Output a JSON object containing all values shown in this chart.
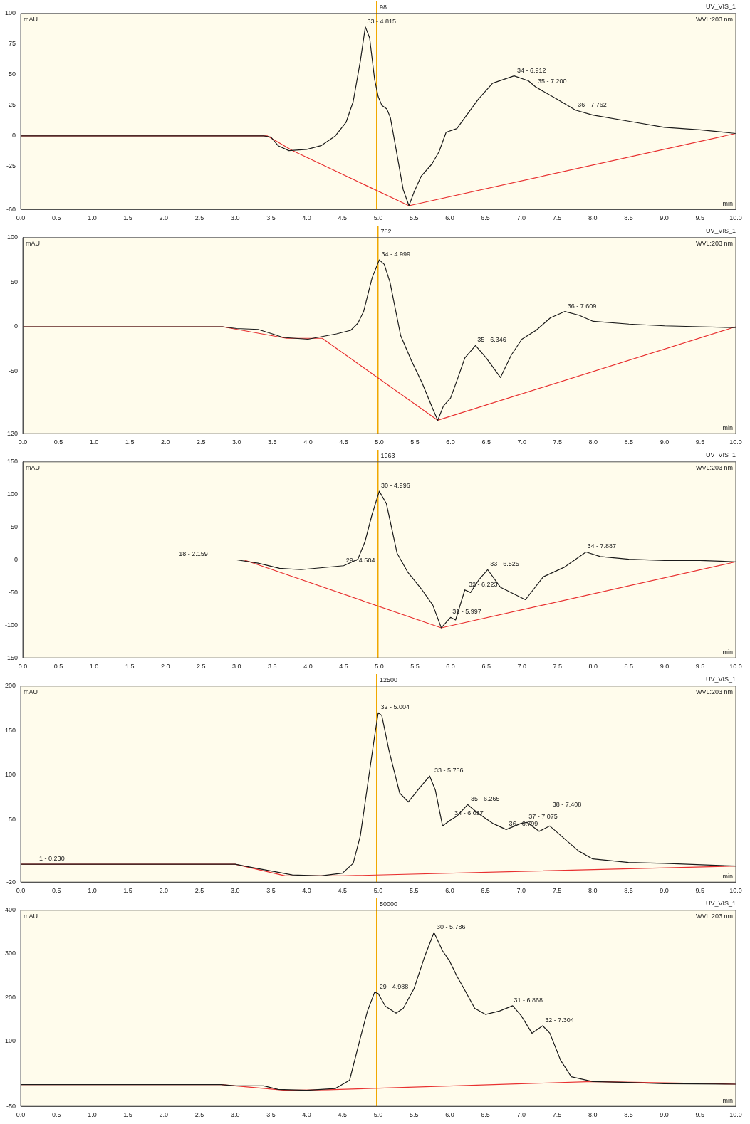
{
  "chart_data": [
    {
      "type": "line",
      "title": "UV_VIS_1",
      "subtitle": "WVL:203 nm",
      "ylabel": "mAU",
      "xlabel": "min",
      "xlim": [
        0,
        10
      ],
      "xticks": [
        {
          "value": 0,
          "label": "0.0"
        },
        {
          "value": 0.5,
          "label": "0.5"
        },
        {
          "value": 1,
          "label": "1.0"
        },
        {
          "value": 1.5,
          "label": "1.5"
        },
        {
          "value": 2,
          "label": "2.0"
        },
        {
          "value": 2.5,
          "label": "2.5"
        },
        {
          "value": 3,
          "label": "3.0"
        },
        {
          "value": 3.5,
          "label": "3.5"
        },
        {
          "value": 4,
          "label": "4.0"
        },
        {
          "value": 4.5,
          "label": "4.5"
        },
        {
          "value": 5,
          "label": "5.0"
        },
        {
          "value": 5.5,
          "label": "5.5"
        },
        {
          "value": 6,
          "label": "6.0"
        },
        {
          "value": 6.5,
          "label": "6.5"
        },
        {
          "value": 7,
          "label": "7.0"
        },
        {
          "value": 7.5,
          "label": "7.5"
        },
        {
          "value": 8,
          "label": "8.0"
        },
        {
          "value": 8.5,
          "label": "8.5"
        },
        {
          "value": 9,
          "label": "9.0"
        },
        {
          "value": 9.5,
          "label": "9.5"
        },
        {
          "value": 10,
          "label": "10.0"
        }
      ],
      "ylim": [
        -60,
        100
      ],
      "yticks": [
        -60,
        -25,
        0,
        25,
        50,
        75,
        100
      ],
      "series": [
        {
          "color": "#1a1a1a",
          "x": [
            0,
            3.4,
            3.5,
            3.6,
            3.75,
            4.0,
            4.2,
            4.4,
            4.55,
            4.65,
            4.75,
            4.82,
            4.88,
            4.95,
            5.0,
            5.05,
            5.12,
            5.17,
            5.25,
            5.35,
            5.43,
            5.5,
            5.6,
            5.75,
            5.85,
            5.95,
            6.1,
            6.25,
            6.4,
            6.6,
            6.9,
            7.1,
            7.2,
            7.5,
            7.76,
            8.0,
            8.5,
            9.0,
            9.5,
            10.0
          ],
          "values": [
            0,
            0,
            -1,
            -8,
            -12,
            -11,
            -8,
            0,
            11,
            28,
            61,
            89,
            80,
            46,
            32,
            25,
            22,
            15,
            -11,
            -44,
            -57,
            -46,
            -33,
            -23,
            -13,
            3,
            6,
            18,
            30,
            43,
            49,
            45,
            40,
            30,
            21,
            17,
            12,
            7,
            5,
            2
          ]
        },
        {
          "color": "#e83030",
          "x": [
            0,
            3.45,
            3.8,
            5.43,
            10
          ],
          "values": [
            0,
            0,
            -12,
            -57,
            2
          ]
        }
      ],
      "ref_lines": [
        {
          "axis": "x",
          "value": 4.98,
          "color": "#f0a800"
        }
      ],
      "annotations": [
        "98",
        {
          "text": "33 - 4.815",
          "x": 4.815,
          "y": 89
        },
        {
          "text": "34 - 6.912",
          "x": 6.912,
          "y": 49
        },
        {
          "text": "35 - 7.200",
          "x": 7.2,
          "y": 40
        },
        {
          "text": "36 - 7.762",
          "x": 7.762,
          "y": 21
        }
      ]
    },
    {
      "type": "line",
      "title": "UV_VIS_1",
      "subtitle": "WVL:203 nm",
      "ylabel": "mAU",
      "xlabel": "min",
      "xlim": [
        0,
        10
      ],
      "xticks": [
        {
          "value": 0,
          "label": "0.0"
        },
        {
          "value": 0.5,
          "label": "0.5"
        },
        {
          "value": 1,
          "label": "1.0"
        },
        {
          "value": 1.5,
          "label": "1.5"
        },
        {
          "value": 2,
          "label": "2.0"
        },
        {
          "value": 2.5,
          "label": "2.5"
        },
        {
          "value": 3,
          "label": "3.0"
        },
        {
          "value": 3.5,
          "label": "3.5"
        },
        {
          "value": 4,
          "label": "4.0"
        },
        {
          "value": 4.5,
          "label": "4.5"
        },
        {
          "value": 5,
          "label": "5.0"
        },
        {
          "value": 5.5,
          "label": "5.5"
        },
        {
          "value": 6,
          "label": "6.0"
        },
        {
          "value": 6.5,
          "label": "6.5"
        },
        {
          "value": 7,
          "label": "7.0"
        },
        {
          "value": 7.5,
          "label": "7.5"
        },
        {
          "value": 8,
          "label": "8.0"
        },
        {
          "value": 8.5,
          "label": "8.5"
        },
        {
          "value": 9,
          "label": "9.0"
        },
        {
          "value": 9.5,
          "label": "9.5"
        },
        {
          "value": 10,
          "label": "10.0"
        }
      ],
      "ylim": [
        -120,
        100
      ],
      "yticks": [
        -120,
        -50,
        0,
        50,
        100
      ],
      "series": [
        {
          "color": "#1a1a1a",
          "x": [
            0,
            2.8,
            3.0,
            3.3,
            3.5,
            3.65,
            4.0,
            4.2,
            4.4,
            4.6,
            4.7,
            4.78,
            4.9,
            5.0,
            5.07,
            5.15,
            5.3,
            5.45,
            5.6,
            5.75,
            5.82,
            5.9,
            6.0,
            6.1,
            6.2,
            6.35,
            6.5,
            6.7,
            6.85,
            7.0,
            7.2,
            7.4,
            7.6,
            7.8,
            8.0,
            8.5,
            9.0,
            9.5,
            10.0
          ],
          "values": [
            0,
            0,
            -2,
            -3,
            -8,
            -12,
            -14,
            -11,
            -8,
            -4,
            4,
            17,
            55,
            75,
            70,
            50,
            -10,
            -38,
            -63,
            -92,
            -105,
            -89,
            -80,
            -58,
            -35,
            -21,
            -35,
            -57,
            -32,
            -14,
            -4,
            10,
            17,
            13,
            6,
            3,
            1,
            0,
            -1
          ]
        },
        {
          "color": "#e83030",
          "x": [
            0,
            2.8,
            3.7,
            4.2,
            5.82,
            10
          ],
          "values": [
            0,
            0,
            -13,
            -13,
            -105,
            0
          ]
        }
      ],
      "ref_lines": [
        {
          "axis": "x",
          "value": 4.98,
          "color": "#f0a800"
        }
      ],
      "annotations": [
        "782",
        {
          "text": "34 - 4.999",
          "x": 4.999,
          "y": 75
        },
        {
          "text": "35 - 6.346",
          "x": 6.346,
          "y": -21
        },
        {
          "text": "36 - 7.609",
          "x": 7.609,
          "y": 17
        }
      ]
    },
    {
      "type": "line",
      "title": "UV_VIS_1",
      "subtitle": "WVL:203 nm",
      "ylabel": "mAU",
      "xlabel": "min",
      "xlim": [
        0,
        10
      ],
      "xticks": [
        {
          "value": 0,
          "label": "0.0"
        },
        {
          "value": 0.5,
          "label": "0.5"
        },
        {
          "value": 1,
          "label": "1.0"
        },
        {
          "value": 1.5,
          "label": "1.5"
        },
        {
          "value": 2,
          "label": "2.0"
        },
        {
          "value": 2.5,
          "label": "2.5"
        },
        {
          "value": 3,
          "label": "3.0"
        },
        {
          "value": 3.5,
          "label": "3.5"
        },
        {
          "value": 4,
          "label": "4.0"
        },
        {
          "value": 4.5,
          "label": "4.5"
        },
        {
          "value": 5,
          "label": "5.0"
        },
        {
          "value": 5.5,
          "label": "5.5"
        },
        {
          "value": 6,
          "label": "6.0"
        },
        {
          "value": 6.5,
          "label": "6.5"
        },
        {
          "value": 7,
          "label": "7.0"
        },
        {
          "value": 7.5,
          "label": "7.5"
        },
        {
          "value": 8,
          "label": "8.0"
        },
        {
          "value": 8.5,
          "label": "8.5"
        },
        {
          "value": 9,
          "label": "9.0"
        },
        {
          "value": 9.5,
          "label": "9.5"
        },
        {
          "value": 10,
          "label": "10.0"
        }
      ],
      "ylim": [
        -150,
        150
      ],
      "yticks": [
        -150,
        -100,
        -50,
        0,
        50,
        100,
        150
      ],
      "series": [
        {
          "color": "#1a1a1a",
          "x": [
            0,
            3.0,
            3.3,
            3.6,
            3.9,
            4.2,
            4.5,
            4.7,
            4.8,
            4.9,
            5.0,
            5.1,
            5.25,
            5.4,
            5.6,
            5.75,
            5.87,
            6.0,
            6.07,
            6.2,
            6.28,
            6.4,
            6.52,
            6.7,
            7.05,
            7.3,
            7.6,
            7.9,
            8.1,
            8.5,
            9.0,
            9.5,
            10.0
          ],
          "values": [
            0,
            0,
            -5,
            -13,
            -15,
            -12,
            -9,
            1,
            28,
            70,
            105,
            86,
            10,
            -19,
            -46,
            -69,
            -104,
            -88,
            -92,
            -46,
            -50,
            -30,
            -15,
            -42,
            -61,
            -26,
            -11,
            12,
            5,
            1,
            -1,
            -1,
            -3
          ]
        },
        {
          "color": "#e83030",
          "x": [
            0,
            3.1,
            5.87,
            10
          ],
          "values": [
            0,
            0,
            -104,
            -3
          ]
        }
      ],
      "ref_lines": [
        {
          "axis": "x",
          "value": 4.98,
          "color": "#f0a800"
        }
      ],
      "annotations": [
        "1963",
        {
          "text": "18 - 2.159",
          "x": 2.159,
          "y": 0
        },
        {
          "text": "29 - 4.504",
          "x": 4.504,
          "y": -9
        },
        {
          "text": "30 - 4.996",
          "x": 4.996,
          "y": 105
        },
        {
          "text": "31 - 5.997",
          "x": 5.997,
          "y": -88
        },
        {
          "text": "32 - 6.223",
          "x": 6.223,
          "y": -46
        },
        {
          "text": "33 - 6.525",
          "x": 6.525,
          "y": -15
        },
        {
          "text": "34 - 7.887",
          "x": 7.887,
          "y": 12
        }
      ]
    },
    {
      "type": "line",
      "title": "UV_VIS_1",
      "subtitle": "WVL:203 nm",
      "ylabel": "mAU",
      "xlabel": "min",
      "xlim": [
        0,
        10
      ],
      "xticks": [
        {
          "value": 0,
          "label": "0.0"
        },
        {
          "value": 0.5,
          "label": "0.5"
        },
        {
          "value": 1,
          "label": "1.0"
        },
        {
          "value": 1.5,
          "label": "1.5"
        },
        {
          "value": 2,
          "label": "2.0"
        },
        {
          "value": 2.5,
          "label": "2.5"
        },
        {
          "value": 3,
          "label": "3.0"
        },
        {
          "value": 3.5,
          "label": "3.5"
        },
        {
          "value": 4,
          "label": "4.0"
        },
        {
          "value": 4.5,
          "label": "4.5"
        },
        {
          "value": 5,
          "label": "5.0"
        },
        {
          "value": 5.5,
          "label": "5.5"
        },
        {
          "value": 6,
          "label": "6.0"
        },
        {
          "value": 6.5,
          "label": "6.5"
        },
        {
          "value": 7,
          "label": "7.0"
        },
        {
          "value": 7.5,
          "label": "7.5"
        },
        {
          "value": 8,
          "label": "8.0"
        },
        {
          "value": 8.5,
          "label": "8.5"
        },
        {
          "value": 9,
          "label": "9.0"
        },
        {
          "value": 9.5,
          "label": "9.5"
        },
        {
          "value": 10,
          "label": "10.0"
        }
      ],
      "ylim": [
        -20,
        200
      ],
      "yticks": [
        -20,
        50,
        100,
        150,
        200
      ],
      "series": [
        {
          "color": "#1a1a1a",
          "x": [
            0,
            3.0,
            3.3,
            3.6,
            3.8,
            4.2,
            4.5,
            4.65,
            4.75,
            4.85,
            4.95,
            5.0,
            5.05,
            5.15,
            5.3,
            5.42,
            5.55,
            5.72,
            5.8,
            5.9,
            6.0,
            6.1,
            6.25,
            6.4,
            6.6,
            6.79,
            7.0,
            7.08,
            7.25,
            7.4,
            7.6,
            7.8,
            8.0,
            8.5,
            9.0,
            10.0
          ],
          "values": [
            0,
            0,
            -4.5,
            -9,
            -12,
            -13,
            -10,
            1,
            32,
            88,
            144,
            170,
            167,
            128,
            80,
            70,
            83,
            99,
            83,
            43,
            49,
            54,
            67,
            57,
            46,
            39,
            46,
            47,
            37,
            43,
            29,
            15,
            6,
            2,
            1,
            -2
          ]
        },
        {
          "color": "#e83030",
          "x": [
            0,
            3.0,
            3.7,
            4.5,
            10
          ],
          "values": [
            0,
            0,
            -13,
            -13,
            -2
          ]
        }
      ],
      "ref_lines": [
        {
          "axis": "x",
          "value": 4.98,
          "color": "#f0a800"
        }
      ],
      "annotations": [
        "12500",
        {
          "text": "1 - 0.230",
          "x": 0.23,
          "y": 0
        },
        {
          "text": "32 - 5.004",
          "x": 5.004,
          "y": 170
        },
        {
          "text": "33 - 5.756",
          "x": 5.756,
          "y": 99
        },
        {
          "text": "34 - 6.037",
          "x": 6.037,
          "y": 51
        },
        {
          "text": "35 - 6.265",
          "x": 6.265,
          "y": 67
        },
        {
          "text": "36 - 6.799",
          "x": 6.799,
          "y": 39
        },
        {
          "text": "37 - 7.075",
          "x": 7.075,
          "y": 47
        },
        {
          "text": "38 - 7.408",
          "x": 7.408,
          "y": 43
        }
      ]
    },
    {
      "type": "line",
      "title": "UV_VIS_1",
      "subtitle": "WVL:203 nm",
      "ylabel": "mAU",
      "xlabel": "min",
      "xlim": [
        0,
        10
      ],
      "xticks": [
        {
          "value": 0,
          "label": "0.0"
        },
        {
          "value": 0.5,
          "label": "0.5"
        },
        {
          "value": 1,
          "label": "1.0"
        },
        {
          "value": 1.5,
          "label": "1.5"
        },
        {
          "value": 2,
          "label": "2.0"
        },
        {
          "value": 2.5,
          "label": "2.5"
        },
        {
          "value": 3,
          "label": "3.0"
        },
        {
          "value": 3.5,
          "label": "3.5"
        },
        {
          "value": 4,
          "label": "4.0"
        },
        {
          "value": 4.5,
          "label": "4.5"
        },
        {
          "value": 5,
          "label": "5.0"
        },
        {
          "value": 5.5,
          "label": "5.5"
        },
        {
          "value": 6,
          "label": "6.0"
        },
        {
          "value": 6.5,
          "label": "6.5"
        },
        {
          "value": 7,
          "label": "7.0"
        },
        {
          "value": 7.5,
          "label": "7.5"
        },
        {
          "value": 8,
          "label": "8.0"
        },
        {
          "value": 8.5,
          "label": "8.5"
        },
        {
          "value": 9,
          "label": "9.0"
        },
        {
          "value": 9.5,
          "label": "9.5"
        },
        {
          "value": 10,
          "label": "10.0"
        }
      ],
      "ylim": [
        -50,
        400
      ],
      "yticks": [
        -50,
        100,
        200,
        300,
        400
      ],
      "series": [
        {
          "color": "#1a1a1a",
          "x": [
            0,
            2.8,
            3.0,
            3.4,
            3.6,
            4.0,
            4.4,
            4.6,
            4.75,
            4.85,
            4.95,
            5.0,
            5.1,
            5.25,
            5.35,
            5.5,
            5.65,
            5.78,
            5.9,
            6.0,
            6.1,
            6.2,
            6.35,
            6.5,
            6.7,
            6.88,
            7.0,
            7.15,
            7.3,
            7.4,
            7.55,
            7.7,
            8.0,
            8.5,
            9.0,
            10.0
          ],
          "values": [
            0,
            0,
            -3,
            -3,
            -11,
            -13,
            -9,
            10,
            107,
            169,
            212,
            209,
            180,
            164,
            175,
            220,
            294,
            349,
            307,
            283,
            249,
            220,
            175,
            161,
            169,
            181,
            158,
            118,
            135,
            118,
            56,
            18,
            7,
            5,
            2,
            1
          ]
        },
        {
          "color": "#e83030",
          "x": [
            0,
            2.8,
            3.7,
            4.3,
            8.0,
            10
          ],
          "values": [
            0,
            0,
            -13,
            -12,
            7,
            1
          ]
        }
      ],
      "ref_lines": [
        {
          "axis": "x",
          "value": 4.98,
          "color": "#f0a800"
        }
      ],
      "annotations": [
        "50000",
        {
          "text": "29 - 4.988",
          "x": 4.988,
          "y": 212
        },
        {
          "text": "30 - 5.786",
          "x": 5.786,
          "y": 349
        },
        {
          "text": "31 - 6.868",
          "x": 6.868,
          "y": 181
        },
        {
          "text": "32 - 7.304",
          "x": 7.304,
          "y": 135
        }
      ]
    }
  ]
}
